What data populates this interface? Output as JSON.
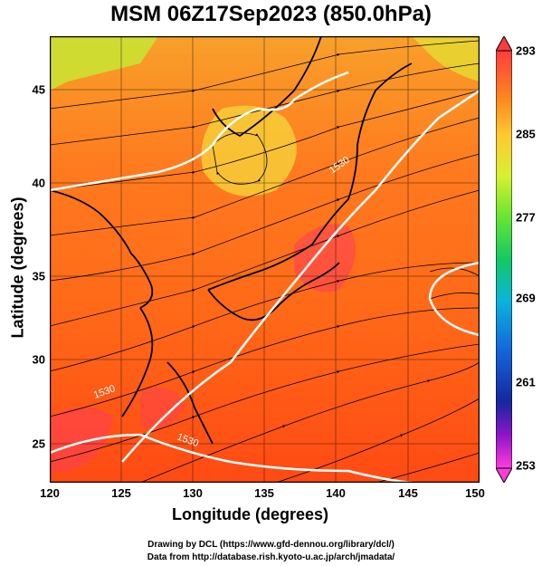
{
  "title": "MSM 06Z17Sep2023 (850.0hPa)",
  "x_axis": {
    "label": "Longitude (degrees)",
    "ticks": [
      "120",
      "125",
      "130",
      "135",
      "140",
      "145",
      "150"
    ]
  },
  "y_axis": {
    "label": "Latitude  (degrees)",
    "ticks": [
      "45",
      "40",
      "35",
      "30",
      "25"
    ]
  },
  "colorbar": {
    "labels": [
      "293",
      "285",
      "277",
      "269",
      "261",
      "253"
    ]
  },
  "contour_labels": [
    "1530",
    "1530",
    "1530"
  ],
  "footer": {
    "line1": "Drawing by DCL (https://www.gfd-dennou.org/library/dcl/)",
    "line2": "Data from http://database.rish.kyoto-u.ac.jp/arch/jmadata/"
  },
  "map_data": {
    "type": "temperature-streamline map",
    "level": "850.0hPa",
    "lon_range": [
      120,
      150
    ],
    "lat_range": [
      22.5,
      47.5
    ],
    "temperature_range_K": [
      253,
      293
    ],
    "colors": {
      "warm": "#ff5a14",
      "mid": "#ff8c1e",
      "cool": "#c8e632",
      "hot": "#ff3c5a",
      "contour": "#ffffff",
      "coast": "#000000"
    }
  }
}
